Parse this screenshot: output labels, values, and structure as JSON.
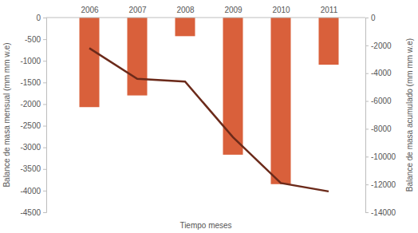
{
  "chart_data": {
    "type": "bar",
    "categories": [
      "2006",
      "2007",
      "2008",
      "2009",
      "2010",
      "2011"
    ],
    "x_label": "Tiempo meses",
    "y_label": "Balance de masa mensual (mm mm w.e)",
    "y2_label": "Balance de masa acumulado (mm mm w.e)",
    "series": [
      {
        "type": "bar",
        "color": "#d9603b",
        "values": [
          -2070,
          -1800,
          -430,
          -3170,
          -3850,
          -1090
        ]
      },
      {
        "type": "line",
        "axis": "y2",
        "color": "#6b2a1a",
        "values": [
          -2200,
          -4400,
          -4600,
          -8600,
          -11900,
          -12500
        ]
      }
    ],
    "ylim": [
      -4500,
      0
    ],
    "yticks": [
      0,
      -500,
      -1000,
      -1500,
      -2000,
      -2500,
      -3000,
      -3500,
      -4000,
      -4500
    ],
    "y2lim": [
      -14000,
      0
    ],
    "y2ticks": [
      0,
      -2000,
      -4000,
      -6000,
      -8000,
      -10000,
      -12000,
      -14000
    ],
    "grid": false
  }
}
